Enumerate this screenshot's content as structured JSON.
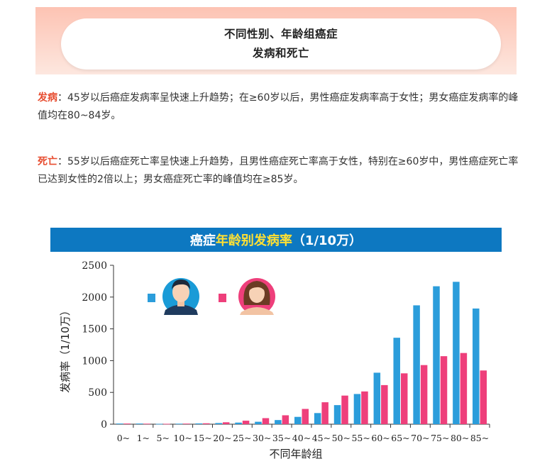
{
  "header": {
    "line1": "不同性别、年龄组癌症",
    "line2": "发病和死亡"
  },
  "incidence": {
    "label": "发病",
    "text": "：45岁以后癌症发病率呈快速上升趋势；在≥60岁以后，男性癌症发病率高于女性；男女癌症发病率的峰值均在80~84岁。"
  },
  "mortality": {
    "label": "死亡",
    "text": "：55岁以后癌症死亡率呈快速上升趋势，且男性癌症死亡率高于女性，特别在≥60岁中，男性癌症死亡率已达到女性的2倍以上；男女癌症死亡率的峰值均在≥85岁。"
  },
  "chart_title": {
    "part1": "癌症",
    "part2": "年龄别发病率",
    "part3": "（1/10万）"
  },
  "colors": {
    "male": "#2b9ddb",
    "female": "#ee3f7b",
    "accent": "#e74c2f",
    "title_bar": "#0d78c1",
    "title_highlight": "#ffe033"
  },
  "legend_icons": [
    "male-avatar-icon",
    "female-avatar-icon"
  ],
  "chart_data": {
    "type": "bar",
    "title": "癌症年龄别发病率（1/10万）",
    "xlabel": "不同年龄组",
    "ylabel": "发病率（1/10万）",
    "categories": [
      "0~",
      "1~",
      "5~",
      "10~",
      "15~",
      "20~",
      "25~",
      "30~",
      "35~",
      "40~",
      "45~",
      "50~",
      "55~",
      "60~",
      "65~",
      "70~",
      "75~",
      "80~",
      "85~"
    ],
    "ylim": [
      0,
      2500
    ],
    "yticks": [
      0,
      500,
      1000,
      1500,
      2000,
      2500
    ],
    "series": [
      {
        "key": "male",
        "values": [
          10,
          10,
          5,
          8,
          12,
          18,
          25,
          38,
          65,
          115,
          175,
          300,
          475,
          810,
          1360,
          1870,
          2170,
          2240,
          1820
        ]
      },
      {
        "key": "female",
        "values": [
          10,
          8,
          6,
          9,
          14,
          30,
          55,
          95,
          140,
          240,
          345,
          450,
          515,
          615,
          800,
          930,
          1070,
          1120,
          845
        ]
      }
    ],
    "legend": "top-left",
    "grid": false
  }
}
